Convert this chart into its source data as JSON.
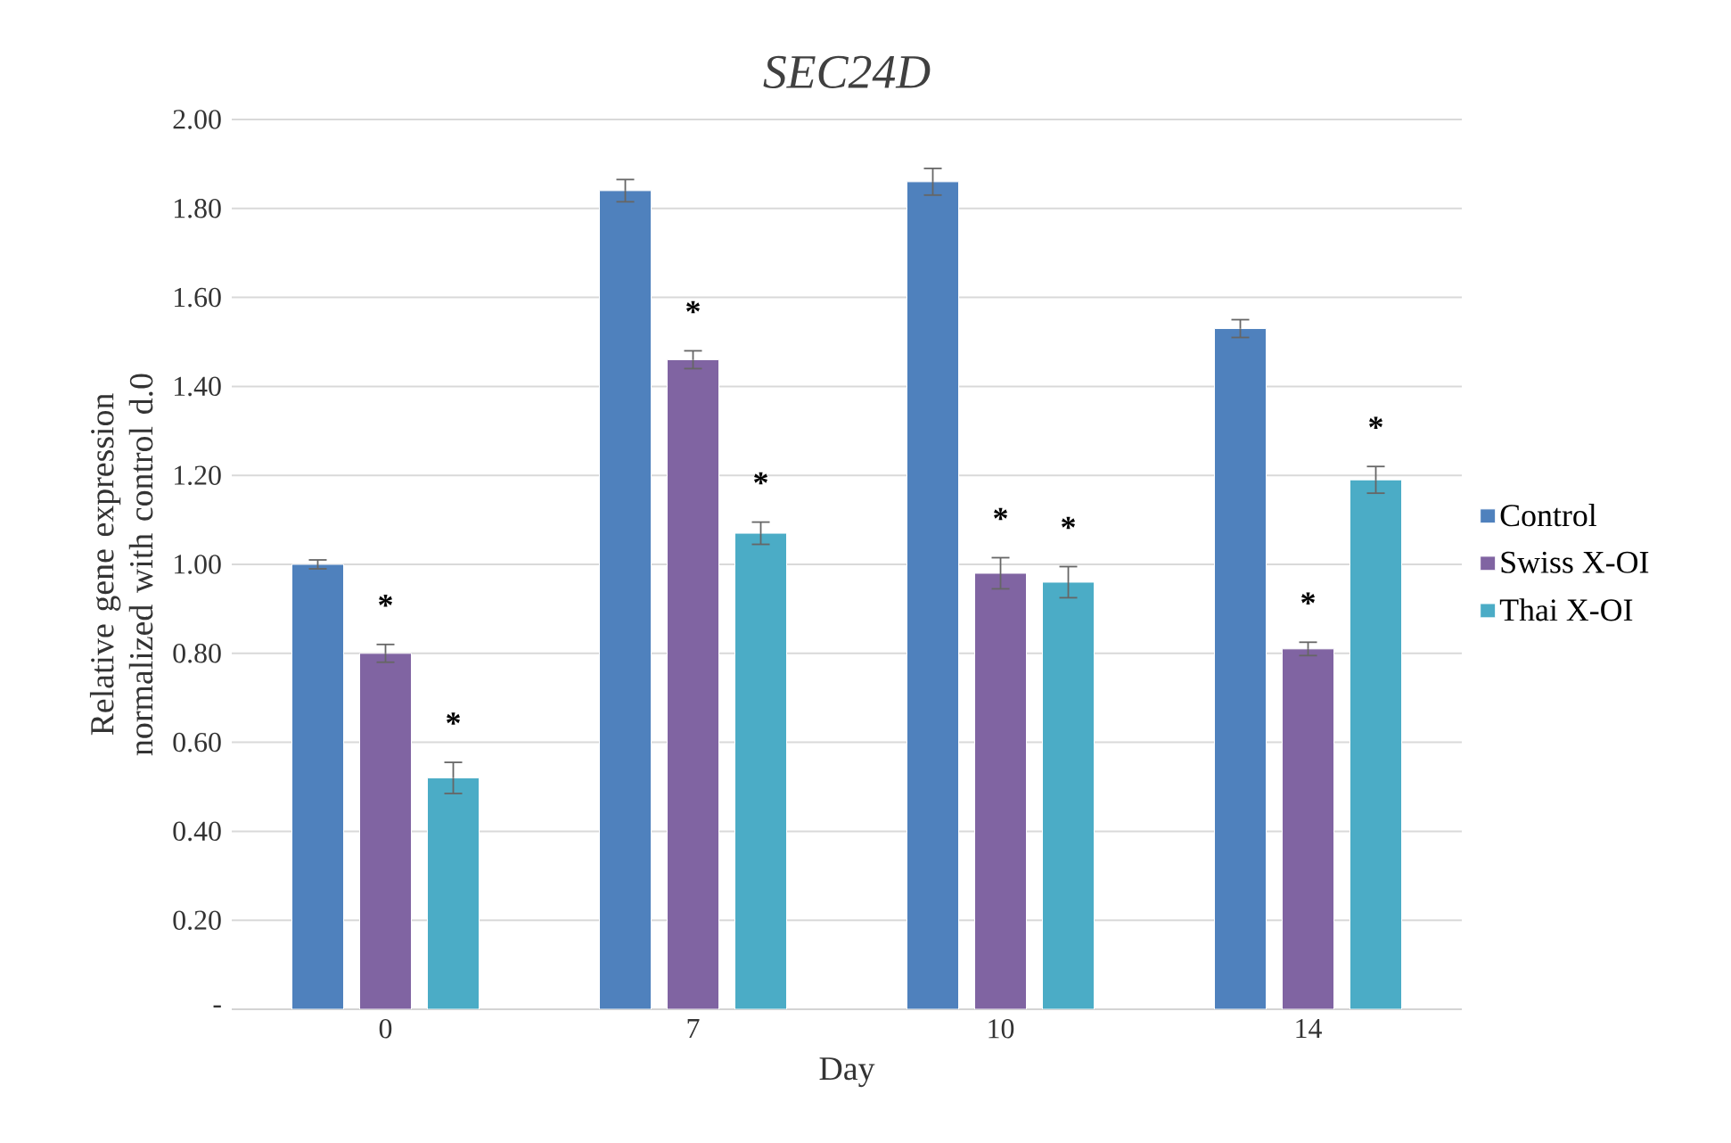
{
  "chart_data": {
    "type": "bar",
    "title": "*SEC24D*",
    "xlabel": "Day",
    "ylabel": "Relative gene expression normalized with control d.0",
    "categories": [
      "0",
      "7",
      "10",
      "14"
    ],
    "series": [
      {
        "name": "Control",
        "color": "#4f81bd",
        "values": [
          1.0,
          1.84,
          1.86,
          1.53
        ],
        "errors": [
          0.01,
          0.025,
          0.03,
          0.02
        ]
      },
      {
        "name": "Swiss X-OI",
        "color": "#8064a2",
        "values": [
          0.8,
          1.46,
          0.98,
          0.81
        ],
        "errors": [
          0.02,
          0.02,
          0.035,
          0.015
        ],
        "value_labels": [
          "*",
          "*",
          "*",
          "*"
        ]
      },
      {
        "name": "Thai X-OI",
        "color": "#4bacc6",
        "values": [
          0.52,
          1.07,
          0.96,
          1.19
        ],
        "errors": [
          0.035,
          0.025,
          0.035,
          0.03
        ],
        "value_labels": [
          "*",
          "*",
          "*",
          "*"
        ]
      }
    ],
    "ylim": [
      0,
      2
    ],
    "yticks": [
      {
        "value": 0,
        "label": "-"
      },
      {
        "value": 0.2,
        "label": "0.20"
      },
      {
        "value": 0.4,
        "label": "0.40"
      },
      {
        "value": 0.6,
        "label": "0.60"
      },
      {
        "value": 0.8,
        "label": "0.80"
      },
      {
        "value": 1.0,
        "label": "1.00"
      },
      {
        "value": 1.2,
        "label": "1.20"
      },
      {
        "value": 1.4,
        "label": "1.40"
      },
      {
        "value": 1.6,
        "label": "1.60"
      },
      {
        "value": 1.8,
        "label": "1.80"
      },
      {
        "value": 2.0,
        "label": "2.00"
      }
    ],
    "grid": "y",
    "legend": "right"
  }
}
